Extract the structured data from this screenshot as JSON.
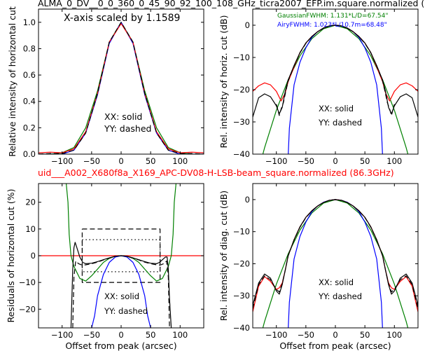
{
  "figure": {
    "title_top": "ALMA_0_DV__0_0_360_0_45_90_92_100_108_GHz_ticra2007_EFP.im.square.normalized (",
    "title_mid": "uid___A002_X680f8a_X169_APC-DV08-H-LSB-beam_square.normalized (86.3GHz)",
    "colors": {
      "blue": "#0000ff",
      "green": "#008000",
      "red": "#ff0000",
      "black": "#000000"
    }
  },
  "chart_data": [
    {
      "id": "top-left",
      "type": "line",
      "ylabel": "Relative intensity of horizontal cut",
      "xlabel": "",
      "xlim": [
        -140,
        140
      ],
      "ylim": [
        0.0,
        1.1
      ],
      "xticks": [
        -100,
        -50,
        0,
        50,
        100
      ],
      "yticks": [
        0.0,
        0.2,
        0.4,
        0.6,
        0.8,
        1.0
      ],
      "annotations": [
        "X-axis scaled by 1.1589",
        "XX: solid",
        "YY: dashed"
      ],
      "series": [
        {
          "color": "green",
          "style": "solid",
          "x": [
            -140,
            -120,
            -100,
            -80,
            -60,
            -40,
            -20,
            0,
            20,
            40,
            60,
            80,
            100,
            120,
            140
          ],
          "y": [
            0.0,
            0.0,
            0.01,
            0.05,
            0.2,
            0.48,
            0.85,
            1.0,
            0.85,
            0.48,
            0.2,
            0.05,
            0.01,
            0.0,
            0.0
          ]
        },
        {
          "color": "blue",
          "style": "solid",
          "x": [
            -140,
            -120,
            -100,
            -80,
            -60,
            -40,
            -20,
            0,
            20,
            40,
            60,
            80,
            100,
            120,
            140
          ],
          "y": [
            0.0,
            0.0,
            0.0,
            0.03,
            0.16,
            0.45,
            0.84,
            1.0,
            0.84,
            0.45,
            0.16,
            0.03,
            0.0,
            0.0,
            0.0
          ]
        },
        {
          "color": "red",
          "style": "solid",
          "x": [
            -140,
            -120,
            -100,
            -80,
            -60,
            -40,
            -20,
            0,
            20,
            40,
            60,
            80,
            100,
            120,
            140
          ],
          "y": [
            0.01,
            0.015,
            0.01,
            0.04,
            0.17,
            0.46,
            0.85,
            0.99,
            0.85,
            0.46,
            0.17,
            0.04,
            0.01,
            0.015,
            0.01
          ]
        },
        {
          "color": "black",
          "style": "dashed",
          "x": [
            -140,
            -120,
            -100,
            -80,
            -60,
            -40,
            -20,
            0,
            20,
            40,
            60,
            80,
            100,
            120,
            140
          ],
          "y": [
            0.0,
            0.005,
            0.005,
            0.03,
            0.16,
            0.46,
            0.85,
            1.0,
            0.85,
            0.46,
            0.16,
            0.03,
            0.005,
            0.005,
            0.0
          ]
        }
      ]
    },
    {
      "id": "top-right",
      "type": "line",
      "ylabel": "Rel. intensity of horiz. cut (dB)",
      "xlabel": "",
      "xlim": [
        -140,
        140
      ],
      "ylim": [
        -40,
        5
      ],
      "xticks": [
        -100,
        -50,
        0,
        50,
        100
      ],
      "yticks": [
        -40,
        -30,
        -20,
        -10,
        0
      ],
      "annotations": [
        "XX: solid",
        "YY: dashed"
      ],
      "legend": [
        "GaussianFWHM: 1.131*L/D=67.54\"",
        "AiryFWHM: 1.023*L/10.7m=68.48\""
      ],
      "series": [
        {
          "color": "green",
          "style": "solid",
          "x": [
            -140,
            -120,
            -100,
            -80,
            -60,
            -40,
            -20,
            0,
            20,
            40,
            60,
            80,
            100,
            120,
            140
          ],
          "y": [
            -51.8,
            -38.0,
            -26.4,
            -16.9,
            -9.5,
            -4.2,
            -1.1,
            0,
            -1.1,
            -4.2,
            -9.5,
            -16.9,
            -26.4,
            -38.0,
            -51.8
          ]
        },
        {
          "color": "blue",
          "style": "solid",
          "x": [
            -81,
            -78,
            -70,
            -60,
            -50,
            -40,
            -30,
            -20,
            -10,
            0,
            10,
            20,
            30,
            40,
            50,
            60,
            70,
            78,
            81
          ],
          "y": [
            -45,
            -32,
            -18.5,
            -11.5,
            -7.0,
            -3.8,
            -2.0,
            -0.8,
            -0.2,
            0,
            -0.2,
            -0.8,
            -2.0,
            -3.8,
            -7.0,
            -11.5,
            -18.5,
            -32,
            -45
          ]
        },
        {
          "color": "red",
          "style": "solid",
          "x": [
            -140,
            -130,
            -120,
            -110,
            -100,
            -92,
            -85,
            -80,
            -70,
            -60,
            -50,
            -40,
            -30,
            -20,
            -10,
            0,
            10,
            20,
            30,
            40,
            50,
            60,
            70,
            80,
            85,
            92,
            100,
            110,
            120,
            130,
            140
          ],
          "y": [
            -20.5,
            -18.8,
            -17.9,
            -18.5,
            -20.5,
            -23.5,
            -21.0,
            -17.5,
            -13.0,
            -8.5,
            -5.5,
            -3.5,
            -2.0,
            -0.9,
            -0.2,
            0,
            -0.2,
            -0.9,
            -2.0,
            -3.5,
            -5.5,
            -8.5,
            -13.0,
            -17.5,
            -21.0,
            -23.5,
            -20.5,
            -18.5,
            -17.9,
            -18.8,
            -20.5
          ]
        },
        {
          "color": "black",
          "style": "solid",
          "x": [
            -140,
            -130,
            -120,
            -110,
            -100,
            -95,
            -90,
            -85,
            -80,
            -70,
            -60,
            -50,
            -40,
            -30,
            -20,
            -10,
            0,
            10,
            20,
            30,
            40,
            50,
            60,
            70,
            80,
            85,
            90,
            95,
            100,
            110,
            120,
            130,
            140
          ],
          "y": [
            -28.5,
            -22.5,
            -21.3,
            -22.2,
            -25.0,
            -27.5,
            -25.5,
            -20.5,
            -17.0,
            -12.5,
            -8.5,
            -5.5,
            -3.5,
            -2.0,
            -0.9,
            -0.2,
            0,
            -0.2,
            -0.9,
            -2.0,
            -3.5,
            -5.5,
            -8.5,
            -12.5,
            -17.0,
            -20.5,
            -25.5,
            -27.5,
            -25.0,
            -22.2,
            -21.3,
            -22.5,
            -28.5
          ]
        },
        {
          "color": "black",
          "style": "dashed",
          "x": [
            -100,
            -95,
            -92,
            -88,
            -84,
            -80,
            -70,
            -60,
            -50,
            -40,
            -30,
            -20,
            -10,
            0,
            10,
            20,
            30,
            40,
            50,
            60,
            70,
            80,
            84,
            88,
            92,
            95,
            100
          ],
          "y": [
            -24.5,
            -28.0,
            -26.0,
            -24.0,
            -20.5,
            -17.3,
            -12.7,
            -8.6,
            -5.6,
            -3.6,
            -2.0,
            -0.9,
            -0.2,
            0,
            -0.2,
            -0.9,
            -2.0,
            -3.6,
            -5.6,
            -8.6,
            -12.7,
            -17.3,
            -20.5,
            -24.0,
            -26.0,
            -28.0,
            -24.5
          ]
        }
      ]
    },
    {
      "id": "bottom-left",
      "type": "line",
      "ylabel": "Residuals of horizontal cut (%)",
      "xlabel": "Offset from peak (arcsec)",
      "xlim": [
        -140,
        140
      ],
      "ylim": [
        -27,
        27
      ],
      "xticks": [
        -100,
        -50,
        0,
        50,
        100
      ],
      "yticks": [
        -20,
        -10,
        0,
        10,
        20
      ],
      "annotations": [
        "XX: solid",
        "YY: dashed"
      ],
      "series": [
        {
          "color": "red",
          "style": "solid",
          "x": [
            -140,
            140
          ],
          "y": [
            0,
            0
          ]
        },
        {
          "color": "black",
          "style": "dashed",
          "x": [
            -66,
            66,
            66,
            -66,
            -66
          ],
          "y": [
            10,
            10,
            -10,
            -10,
            10
          ]
        },
        {
          "color": "black",
          "style": "dotted",
          "x": [
            -66,
            66,
            66,
            -66,
            -66
          ],
          "y": [
            6,
            6,
            -6,
            -6,
            6
          ]
        },
        {
          "color": "green",
          "style": "solid",
          "x": [
            -93,
            -90,
            -88,
            -85,
            -80,
            -70,
            -60,
            -50,
            -40,
            -30,
            -20,
            -10,
            0,
            10,
            20,
            30,
            40,
            50,
            60,
            70,
            80,
            85,
            88,
            90,
            93
          ],
          "y": [
            27,
            20,
            8,
            0,
            -4,
            -8.5,
            -9.5,
            -7.5,
            -5.0,
            -2.5,
            -1.0,
            -0.2,
            0,
            -0.2,
            -1.0,
            -2.5,
            -5.0,
            -7.5,
            -9.5,
            -8.5,
            -4,
            0,
            8,
            20,
            27
          ]
        },
        {
          "color": "blue",
          "style": "solid",
          "x": [
            -50,
            -45,
            -40,
            -30,
            -20,
            -10,
            0,
            10,
            20,
            30,
            40,
            45,
            50
          ],
          "y": [
            -27,
            -22.5,
            -15.0,
            -7.0,
            -2.5,
            -0.5,
            0,
            -0.5,
            -2.5,
            -7.0,
            -15.0,
            -22.5,
            -27
          ]
        },
        {
          "color": "black",
          "style": "solid",
          "x": [
            -85,
            -82,
            -80,
            -78,
            -75,
            -70,
            -65,
            -60,
            -50,
            -40,
            -30,
            -20,
            -10,
            0,
            10,
            20,
            30,
            40,
            50,
            60,
            65,
            70,
            75,
            78,
            80,
            82,
            85
          ],
          "y": [
            -27,
            -5,
            3,
            5,
            3,
            -0.5,
            -2.5,
            -3.0,
            -2.8,
            -2.2,
            -1.5,
            -0.8,
            -0.2,
            0,
            -0.2,
            -0.8,
            -1.5,
            -2.2,
            -2.8,
            -3.0,
            -2.5,
            -1.5,
            -0.5,
            -0.5,
            -5,
            -16,
            -27
          ]
        },
        {
          "color": "black",
          "style": "dashed",
          "x": [
            -82,
            -80,
            -77,
            -72,
            -66,
            -60,
            -50,
            -40,
            -30,
            -20,
            -10,
            0,
            10,
            20,
            30,
            40,
            50,
            60,
            66,
            72,
            77,
            80,
            82
          ],
          "y": [
            -27,
            -8,
            -2,
            -3.0,
            -3.5,
            -3.4,
            -3.0,
            -2.4,
            -1.6,
            -0.9,
            -0.2,
            0,
            -0.2,
            -0.9,
            -1.6,
            -2.4,
            -3.0,
            -3.4,
            -3.5,
            -3.0,
            -2,
            -8,
            -27
          ]
        }
      ]
    },
    {
      "id": "bottom-right",
      "type": "line",
      "ylabel": "Rel. intensity of diag. cut (dB)",
      "xlabel": "Offset from peak (arcsec)",
      "xlim": [
        -140,
        140
      ],
      "ylim": [
        -40,
        5
      ],
      "xticks": [
        -100,
        -50,
        0,
        50,
        100
      ],
      "yticks": [
        -40,
        -30,
        -20,
        -10,
        0
      ],
      "annotations": [
        "XX: solid",
        "YY: dashed"
      ],
      "series": [
        {
          "color": "green",
          "style": "solid",
          "x": [
            -140,
            -120,
            -100,
            -80,
            -60,
            -40,
            -20,
            0,
            20,
            40,
            60,
            80,
            100,
            120,
            140
          ],
          "y": [
            -51.8,
            -38.0,
            -26.4,
            -16.9,
            -9.5,
            -4.2,
            -1.1,
            0,
            -1.1,
            -4.2,
            -9.5,
            -16.9,
            -26.4,
            -38.0,
            -51.8
          ]
        },
        {
          "color": "blue",
          "style": "solid",
          "x": [
            -81,
            -78,
            -70,
            -60,
            -50,
            -40,
            -30,
            -20,
            -10,
            0,
            10,
            20,
            30,
            40,
            50,
            60,
            70,
            78,
            81
          ],
          "y": [
            -45,
            -32,
            -18.5,
            -11.5,
            -7.0,
            -3.8,
            -2.0,
            -0.8,
            -0.2,
            0,
            -0.2,
            -0.8,
            -2.0,
            -3.8,
            -7.0,
            -11.5,
            -18.5,
            -32,
            -45
          ]
        },
        {
          "color": "red",
          "style": "solid",
          "x": [
            -140,
            -130,
            -120,
            -110,
            -100,
            -95,
            -90,
            -85,
            -80,
            -70,
            -60,
            -50,
            -40,
            -30,
            -20,
            -10,
            0,
            10,
            20,
            30,
            40,
            50,
            60,
            70,
            80,
            85,
            90,
            95,
            100,
            110,
            120,
            130,
            140
          ],
          "y": [
            -35,
            -27,
            -24,
            -25.5,
            -28,
            -27.5,
            -26.0,
            -22.0,
            -17.5,
            -12.5,
            -8.5,
            -5.5,
            -3.5,
            -2.0,
            -0.9,
            -0.2,
            0,
            -0.2,
            -0.9,
            -2.0,
            -3.5,
            -5.5,
            -8.5,
            -12.5,
            -17.5,
            -22.0,
            -26.0,
            -27.5,
            -28,
            -25.5,
            -24,
            -27,
            -35
          ]
        },
        {
          "color": "black",
          "style": "solid",
          "x": [
            -140,
            -130,
            -120,
            -110,
            -100,
            -95,
            -90,
            -85,
            -80,
            -70,
            -60,
            -50,
            -40,
            -30,
            -20,
            -10,
            0,
            10,
            20,
            30,
            40,
            50,
            60,
            70,
            80,
            85,
            90,
            95,
            100,
            110,
            120,
            130,
            140
          ],
          "y": [
            -33,
            -26,
            -23.2,
            -24.5,
            -28.5,
            -29.5,
            -26.5,
            -22.0,
            -17.5,
            -12.5,
            -8.5,
            -5.5,
            -3.5,
            -2.0,
            -0.9,
            -0.2,
            0,
            -0.2,
            -0.9,
            -2.0,
            -3.5,
            -5.5,
            -8.5,
            -12.5,
            -17.5,
            -22.0,
            -26.5,
            -29.5,
            -28.5,
            -24.5,
            -23.2,
            -26,
            -33
          ]
        },
        {
          "color": "black",
          "style": "dashed",
          "x": [
            -140,
            -130,
            -120,
            -110,
            -100,
            -95,
            -90,
            -85,
            -80,
            -70,
            -60,
            -50,
            -40,
            -30,
            -20,
            -10,
            0,
            10,
            20,
            30,
            40,
            50,
            60,
            70,
            80,
            85,
            90,
            95,
            100,
            110,
            120,
            130,
            140
          ],
          "y": [
            -34,
            -26.5,
            -23.8,
            -25.0,
            -28.0,
            -28.8,
            -26.2,
            -22.0,
            -17.5,
            -12.6,
            -8.6,
            -5.6,
            -3.6,
            -2.0,
            -0.9,
            -0.2,
            0,
            -0.2,
            -0.9,
            -2.0,
            -3.6,
            -5.6,
            -8.6,
            -12.6,
            -17.5,
            -22.0,
            -26.2,
            -28.8,
            -28.0,
            -25.0,
            -23.8,
            -26.5,
            -34
          ]
        }
      ]
    }
  ]
}
